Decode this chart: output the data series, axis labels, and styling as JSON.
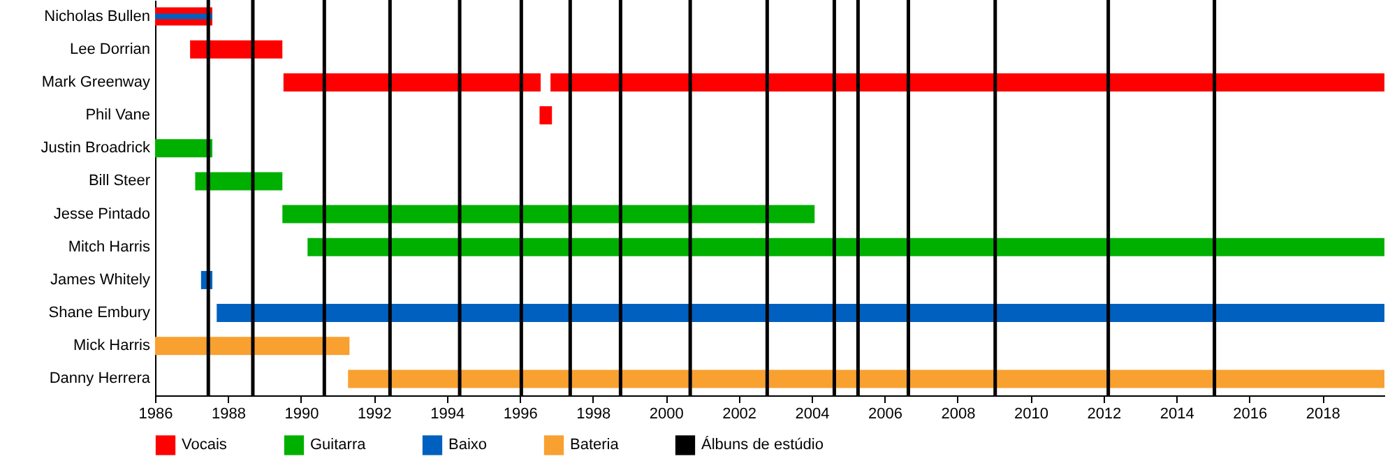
{
  "chart_data": {
    "type": "bar",
    "orientation": "horizontal",
    "categories": [
      "Nicholas Bullen",
      "Lee Dorrian",
      "Mark Greenway",
      "Phil Vane",
      "Justin Broadrick",
      "Bill Steer",
      "Jesse Pintado",
      "Mitch Harris",
      "James Whitely",
      "Shane Embury",
      "Mick Harris",
      "Danny Herrera"
    ],
    "series": [
      {
        "name": "Vocais",
        "color": "#ff0000",
        "base": [
          1986.0,
          1986.96,
          1989.52,
          1996.54,
          null,
          null,
          null,
          null,
          null,
          null,
          null,
          null
        ],
        "values": [
          1.57,
          2.53,
          7.05,
          0.34,
          null,
          null,
          null,
          null,
          null,
          null,
          null,
          null
        ]
      },
      {
        "name": "Guitarra",
        "color": "#00b000",
        "base": [
          null,
          null,
          null,
          null,
          1986.0,
          1987.1,
          1989.49,
          1990.18,
          null,
          null,
          null,
          null
        ],
        "values": [
          null,
          null,
          null,
          null,
          1.57,
          2.39,
          14.59,
          29.52,
          null,
          null,
          null,
          null
        ]
      },
      {
        "name": "Baixo",
        "color": "#0060c0",
        "base": [
          1986.0,
          null,
          null,
          null,
          null,
          null,
          null,
          null,
          1987.26,
          1987.69,
          null,
          null
        ],
        "values": [
          1.57,
          null,
          null,
          null,
          null,
          null,
          null,
          null,
          0.31,
          32.01,
          null,
          null
        ]
      },
      {
        "name": "Bateria",
        "color": "#f8a030",
        "base": [
          null,
          null,
          null,
          null,
          null,
          null,
          null,
          null,
          null,
          null,
          1986.0,
          1991.29
        ],
        "values": [
          null,
          null,
          null,
          null,
          null,
          null,
          null,
          null,
          null,
          null,
          5.33,
          28.41
        ]
      },
      {
        "color": "#ff0000",
        "base": [
          null,
          null,
          1996.84,
          null,
          null,
          null,
          null,
          null,
          null,
          null,
          null,
          null
        ],
        "values": [
          null,
          null,
          22.86,
          null,
          null,
          null,
          null,
          null,
          null,
          null,
          null,
          null
        ]
      }
    ],
    "xlim": [
      1986,
      2019.7
    ],
    "xticks": [
      1986,
      1988,
      1990,
      1992,
      1994,
      1996,
      1998,
      2000,
      2002,
      2004,
      2006,
      2008,
      2010,
      2012,
      2014,
      2016,
      2018
    ],
    "ref_lines": [
      {
        "axis": "x",
        "value": 1987.46,
        "color": "#000000",
        "label": "Álbuns de estúdio"
      },
      {
        "axis": "x",
        "value": 1988.68,
        "color": "#000000"
      },
      {
        "axis": "x",
        "value": 1990.64,
        "color": "#000000"
      },
      {
        "axis": "x",
        "value": 1992.44,
        "color": "#000000"
      },
      {
        "axis": "x",
        "value": 1994.35,
        "color": "#000000"
      },
      {
        "axis": "x",
        "value": 1996.04,
        "color": "#000000"
      },
      {
        "axis": "x",
        "value": 1997.38,
        "color": "#000000"
      },
      {
        "axis": "x",
        "value": 1998.76,
        "color": "#000000"
      },
      {
        "axis": "x",
        "value": 2000.67,
        "color": "#000000"
      },
      {
        "axis": "x",
        "value": 2002.78,
        "color": "#000000"
      },
      {
        "axis": "x",
        "value": 2004.62,
        "color": "#000000"
      },
      {
        "axis": "x",
        "value": 2005.27,
        "color": "#000000"
      },
      {
        "axis": "x",
        "value": 2006.65,
        "color": "#000000"
      },
      {
        "axis": "x",
        "value": 2009.03,
        "color": "#000000"
      },
      {
        "axis": "x",
        "value": 2012.13,
        "color": "#000000"
      },
      {
        "axis": "x",
        "value": 2015.04,
        "color": "#000000"
      }
    ],
    "legend": "bottom",
    "grid": false
  }
}
